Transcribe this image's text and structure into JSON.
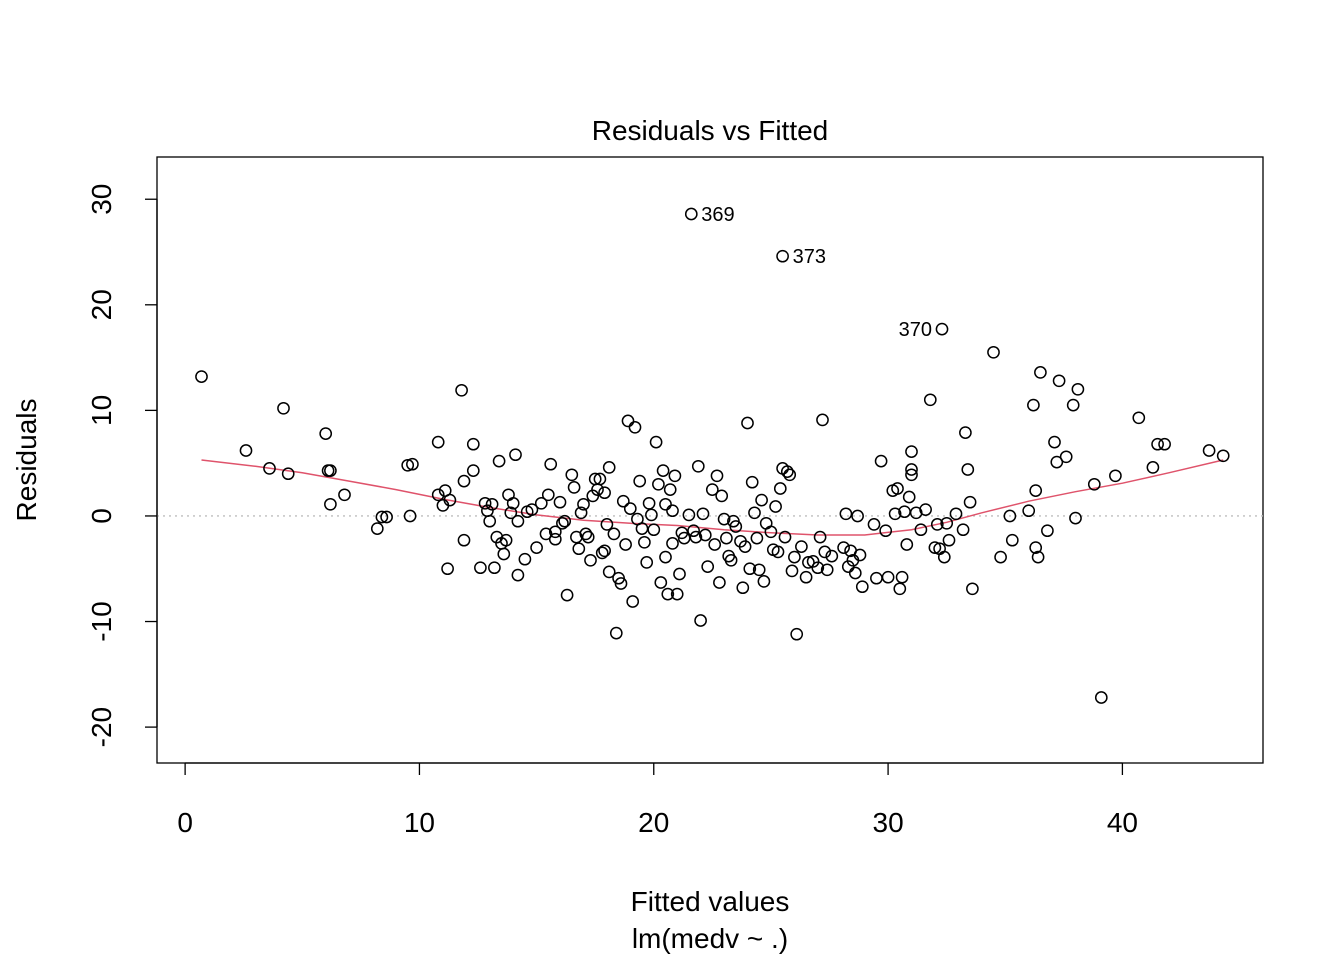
{
  "chart_data": {
    "type": "scatter",
    "title": "Residuals vs Fitted",
    "xlabel": "Fitted values",
    "sublabel": "lm(medv ~ .)",
    "ylabel": "Residuals",
    "xlim": [
      -1.2,
      46.0
    ],
    "ylim": [
      -23.4,
      34.0
    ],
    "x_ticks": [
      0,
      10,
      20,
      30,
      40
    ],
    "y_ticks": [
      -20,
      -10,
      0,
      10,
      20,
      30
    ],
    "reference_line_y": 0,
    "points": [
      [
        0.7,
        13.2
      ],
      [
        2.6,
        6.2
      ],
      [
        3.6,
        4.5
      ],
      [
        4.2,
        10.2
      ],
      [
        4.4,
        4.0
      ],
      [
        6.0,
        7.8
      ],
      [
        6.1,
        4.3
      ],
      [
        6.2,
        4.3
      ],
      [
        6.2,
        1.1
      ],
      [
        6.8,
        2.0
      ],
      [
        8.2,
        -1.2
      ],
      [
        8.4,
        -0.1
      ],
      [
        8.6,
        -0.1
      ],
      [
        9.5,
        4.8
      ],
      [
        9.7,
        4.9
      ],
      [
        9.6,
        0.0
      ],
      [
        10.8,
        7.0
      ],
      [
        10.8,
        2.0
      ],
      [
        11.0,
        1.0
      ],
      [
        11.1,
        2.4
      ],
      [
        11.2,
        -5.0
      ],
      [
        11.3,
        1.5
      ],
      [
        11.8,
        11.9
      ],
      [
        11.9,
        3.3
      ],
      [
        11.9,
        -2.3
      ],
      [
        12.3,
        6.8
      ],
      [
        12.3,
        4.3
      ],
      [
        12.6,
        -4.9
      ],
      [
        12.8,
        1.2
      ],
      [
        12.9,
        0.5
      ],
      [
        13.0,
        -0.5
      ],
      [
        13.1,
        1.1
      ],
      [
        13.2,
        -4.9
      ],
      [
        13.3,
        -2.0
      ],
      [
        13.4,
        5.2
      ],
      [
        13.5,
        -2.6
      ],
      [
        13.6,
        -3.6
      ],
      [
        13.7,
        -2.3
      ],
      [
        13.8,
        2.0
      ],
      [
        13.9,
        0.3
      ],
      [
        14.0,
        1.2
      ],
      [
        14.1,
        5.8
      ],
      [
        14.2,
        -5.6
      ],
      [
        14.2,
        -0.5
      ],
      [
        14.5,
        -4.1
      ],
      [
        14.6,
        0.4
      ],
      [
        14.8,
        0.6
      ],
      [
        15.0,
        -3.0
      ],
      [
        15.2,
        1.2
      ],
      [
        15.4,
        -1.7
      ],
      [
        15.5,
        2.0
      ],
      [
        15.6,
        4.9
      ],
      [
        15.8,
        -1.5
      ],
      [
        15.8,
        -2.2
      ],
      [
        16.0,
        1.3
      ],
      [
        16.1,
        -0.7
      ],
      [
        16.2,
        -0.5
      ],
      [
        16.3,
        -7.5
      ],
      [
        16.5,
        3.9
      ],
      [
        16.6,
        2.7
      ],
      [
        16.7,
        -2.0
      ],
      [
        16.8,
        -3.1
      ],
      [
        16.9,
        0.3
      ],
      [
        17.0,
        1.1
      ],
      [
        17.1,
        -1.7
      ],
      [
        17.2,
        -2.0
      ],
      [
        17.3,
        -4.2
      ],
      [
        17.4,
        1.9
      ],
      [
        17.5,
        3.5
      ],
      [
        17.6,
        2.5
      ],
      [
        17.7,
        3.5
      ],
      [
        17.8,
        -3.5
      ],
      [
        17.9,
        2.2
      ],
      [
        17.9,
        -3.3
      ],
      [
        18.0,
        -0.8
      ],
      [
        18.1,
        4.6
      ],
      [
        18.1,
        -5.3
      ],
      [
        18.3,
        -1.7
      ],
      [
        18.4,
        -11.1
      ],
      [
        18.5,
        -5.9
      ],
      [
        18.6,
        -6.4
      ],
      [
        18.7,
        1.4
      ],
      [
        18.8,
        -2.7
      ],
      [
        18.9,
        9.0
      ],
      [
        19.0,
        0.7
      ],
      [
        19.1,
        -8.1
      ],
      [
        19.2,
        8.4
      ],
      [
        19.3,
        -0.3
      ],
      [
        19.4,
        3.3
      ],
      [
        19.5,
        -1.2
      ],
      [
        19.6,
        -2.5
      ],
      [
        19.7,
        -4.4
      ],
      [
        19.8,
        1.2
      ],
      [
        19.9,
        0.1
      ],
      [
        20.0,
        -1.3
      ],
      [
        20.1,
        7.0
      ],
      [
        20.2,
        3.0
      ],
      [
        20.3,
        -6.3
      ],
      [
        20.4,
        4.3
      ],
      [
        20.5,
        1.1
      ],
      [
        20.5,
        -3.9
      ],
      [
        20.6,
        -7.4
      ],
      [
        20.7,
        2.5
      ],
      [
        20.8,
        0.5
      ],
      [
        20.8,
        -2.6
      ],
      [
        20.9,
        3.8
      ],
      [
        21.0,
        -7.4
      ],
      [
        21.1,
        -5.5
      ],
      [
        21.2,
        -1.6
      ],
      [
        21.3,
        -2.1
      ],
      [
        21.5,
        0.1
      ],
      [
        21.6,
        28.6
      ],
      [
        21.7,
        -1.4
      ],
      [
        21.8,
        -2.0
      ],
      [
        21.9,
        4.7
      ],
      [
        22.0,
        -9.9
      ],
      [
        22.1,
        0.2
      ],
      [
        22.2,
        -1.8
      ],
      [
        22.3,
        -4.8
      ],
      [
        22.5,
        2.5
      ],
      [
        22.6,
        -2.7
      ],
      [
        22.7,
        3.8
      ],
      [
        22.8,
        -6.3
      ],
      [
        22.9,
        1.9
      ],
      [
        23.0,
        -0.3
      ],
      [
        23.1,
        -2.1
      ],
      [
        23.2,
        -3.8
      ],
      [
        23.3,
        -4.2
      ],
      [
        23.4,
        -0.5
      ],
      [
        23.5,
        -1.0
      ],
      [
        23.7,
        -2.4
      ],
      [
        23.8,
        -6.8
      ],
      [
        23.9,
        -2.9
      ],
      [
        24.0,
        8.8
      ],
      [
        24.1,
        -5.0
      ],
      [
        24.2,
        3.2
      ],
      [
        24.3,
        0.3
      ],
      [
        24.4,
        -2.1
      ],
      [
        24.5,
        -5.1
      ],
      [
        24.6,
        1.5
      ],
      [
        24.7,
        -6.2
      ],
      [
        24.8,
        -0.7
      ],
      [
        25.0,
        -1.5
      ],
      [
        25.1,
        -3.2
      ],
      [
        25.2,
        0.9
      ],
      [
        25.3,
        -3.4
      ],
      [
        25.4,
        2.6
      ],
      [
        25.5,
        24.6
      ],
      [
        25.5,
        4.5
      ],
      [
        25.6,
        -2.0
      ],
      [
        25.7,
        4.2
      ],
      [
        25.8,
        3.9
      ],
      [
        25.9,
        -5.2
      ],
      [
        26.0,
        -3.9
      ],
      [
        26.1,
        -11.2
      ],
      [
        26.3,
        -2.9
      ],
      [
        26.5,
        -5.8
      ],
      [
        26.6,
        -4.4
      ],
      [
        26.8,
        -4.3
      ],
      [
        27.0,
        -4.9
      ],
      [
        27.1,
        -2.0
      ],
      [
        27.2,
        9.1
      ],
      [
        27.3,
        -3.4
      ],
      [
        27.4,
        -5.1
      ],
      [
        27.6,
        -3.8
      ],
      [
        28.1,
        -3.0
      ],
      [
        28.2,
        0.2
      ],
      [
        28.3,
        -4.8
      ],
      [
        28.4,
        -3.3
      ],
      [
        28.5,
        -4.2
      ],
      [
        28.6,
        -5.4
      ],
      [
        28.7,
        0.0
      ],
      [
        28.8,
        -3.7
      ],
      [
        28.9,
        -6.7
      ],
      [
        29.4,
        -0.8
      ],
      [
        29.5,
        -5.9
      ],
      [
        29.7,
        5.2
      ],
      [
        29.9,
        -1.4
      ],
      [
        30.0,
        -5.8
      ],
      [
        30.2,
        2.4
      ],
      [
        30.3,
        0.2
      ],
      [
        30.4,
        2.6
      ],
      [
        30.5,
        -6.9
      ],
      [
        30.6,
        -5.8
      ],
      [
        30.7,
        0.4
      ],
      [
        30.8,
        -2.7
      ],
      [
        30.9,
        1.8
      ],
      [
        31.0,
        6.1
      ],
      [
        31.0,
        4.4
      ],
      [
        31.0,
        3.9
      ],
      [
        31.2,
        0.3
      ],
      [
        31.4,
        -1.3
      ],
      [
        31.6,
        0.6
      ],
      [
        31.8,
        11.0
      ],
      [
        32.0,
        -3.0
      ],
      [
        32.1,
        -0.8
      ],
      [
        32.2,
        -3.1
      ],
      [
        32.3,
        17.7
      ],
      [
        32.4,
        -3.9
      ],
      [
        32.5,
        -0.7
      ],
      [
        32.6,
        -2.3
      ],
      [
        32.9,
        0.2
      ],
      [
        33.2,
        -1.3
      ],
      [
        33.3,
        7.9
      ],
      [
        33.4,
        4.4
      ],
      [
        33.5,
        1.3
      ],
      [
        33.6,
        -6.9
      ],
      [
        34.5,
        15.5
      ],
      [
        34.8,
        -3.9
      ],
      [
        35.2,
        0.0
      ],
      [
        35.3,
        -2.3
      ],
      [
        36.0,
        0.5
      ],
      [
        36.2,
        10.5
      ],
      [
        36.3,
        2.4
      ],
      [
        36.3,
        -3.0
      ],
      [
        36.4,
        -3.9
      ],
      [
        36.5,
        13.6
      ],
      [
        36.8,
        -1.4
      ],
      [
        37.1,
        7.0
      ],
      [
        37.2,
        5.1
      ],
      [
        37.3,
        12.8
      ],
      [
        37.6,
        5.6
      ],
      [
        37.9,
        10.5
      ],
      [
        38.0,
        -0.2
      ],
      [
        38.1,
        12.0
      ],
      [
        38.8,
        3.0
      ],
      [
        39.1,
        -17.2
      ],
      [
        39.7,
        3.8
      ],
      [
        40.7,
        9.3
      ],
      [
        41.3,
        4.6
      ],
      [
        41.5,
        6.8
      ],
      [
        41.8,
        6.8
      ],
      [
        43.7,
        6.2
      ],
      [
        44.3,
        5.7
      ]
    ],
    "smooth": [
      [
        0.7,
        5.3
      ],
      [
        3,
        4.7
      ],
      [
        5,
        4.1
      ],
      [
        7,
        3.3
      ],
      [
        9,
        2.5
      ],
      [
        11,
        1.6
      ],
      [
        13,
        0.8
      ],
      [
        15,
        0.1
      ],
      [
        17,
        -0.4
      ],
      [
        19,
        -0.7
      ],
      [
        21,
        -0.9
      ],
      [
        23,
        -1.3
      ],
      [
        25,
        -1.6
      ],
      [
        27,
        -1.8
      ],
      [
        29,
        -1.8
      ],
      [
        31,
        -1.3
      ],
      [
        32.5,
        -0.6
      ],
      [
        34,
        0.3
      ],
      [
        36,
        1.4
      ],
      [
        38,
        2.3
      ],
      [
        40,
        3.1
      ],
      [
        42,
        4.1
      ],
      [
        44.3,
        5.3
      ]
    ],
    "labeled_points": [
      {
        "label": "369",
        "x": 21.6,
        "y": 28.6,
        "side": "right"
      },
      {
        "label": "373",
        "x": 25.5,
        "y": 24.6,
        "side": "right"
      },
      {
        "label": "370",
        "x": 32.3,
        "y": 17.7,
        "side": "left"
      }
    ],
    "colors": {
      "points": "#000000",
      "smooth": "#DF536B",
      "reference": "#BEBEBE"
    },
    "grid": false,
    "legend": "none"
  }
}
